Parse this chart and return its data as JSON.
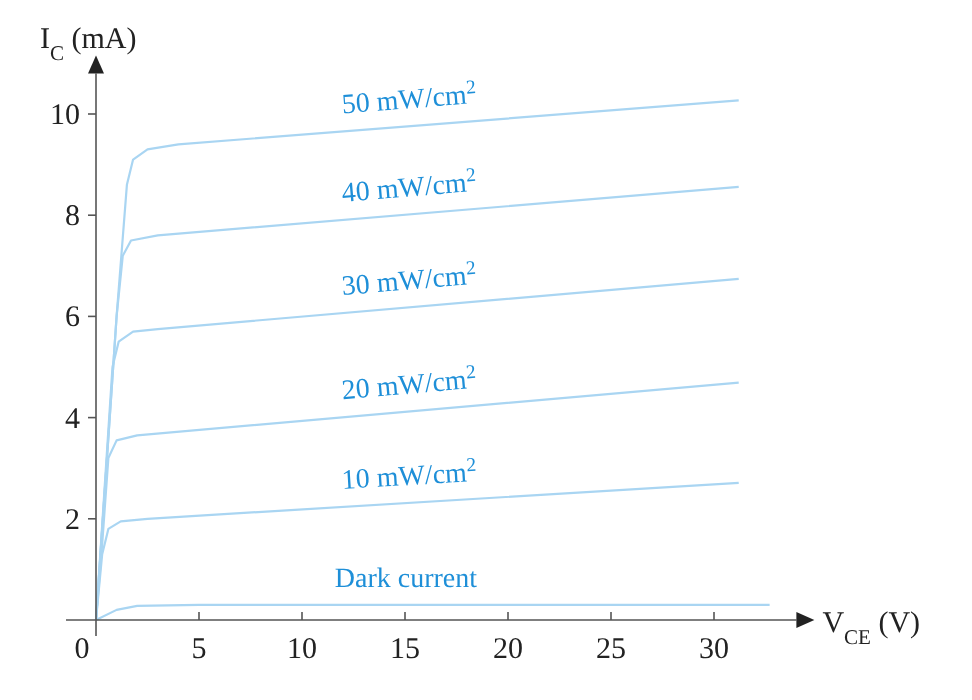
{
  "chart_data": {
    "type": "line",
    "xlabel": "V$_{CE}$ (V)",
    "ylabel": "I$_{C}$ (mA)",
    "xlim": [
      0,
      34
    ],
    "ylim": [
      0,
      10.8
    ],
    "xticks": [
      0,
      5,
      10,
      15,
      20,
      25,
      30
    ],
    "yticks": [
      {
        "value": 0,
        "label": null
      },
      2,
      4,
      6,
      8,
      10
    ],
    "grid": false,
    "marker": "none",
    "line_style": "solid",
    "series": [
      {
        "name": "50 mW/cm$^{2}$",
        "color": "#a9d5f2",
        "x": [
          0,
          0.5,
          1,
          1.5,
          1.8,
          2.5,
          4,
          31.2
        ],
        "values": [
          0,
          3,
          6,
          8.6,
          9.1,
          9.3,
          9.4,
          10.27
        ]
      },
      {
        "name": "40 mW/cm$^{2}$",
        "color": "#a9d5f2",
        "x": [
          0,
          0.5,
          1,
          1.3,
          1.7,
          3,
          31.2
        ],
        "values": [
          0,
          3,
          6,
          7.2,
          7.5,
          7.6,
          8.56
        ]
      },
      {
        "name": "30 mW/cm$^{2}$",
        "color": "#a9d5f2",
        "x": [
          0,
          0.4,
          0.8,
          1.1,
          1.8,
          3,
          31.2
        ],
        "values": [
          0,
          2.5,
          5,
          5.5,
          5.7,
          5.75,
          6.74
        ]
      },
      {
        "name": "20 mW/cm$^{2}$",
        "color": "#a9d5f2",
        "x": [
          0,
          0.3,
          0.6,
          1,
          2,
          31.2
        ],
        "values": [
          0,
          1.5,
          3.2,
          3.55,
          3.65,
          4.69
        ]
      },
      {
        "name": "10 mW/cm$^{2}$",
        "color": "#a9d5f2",
        "x": [
          0,
          0.3,
          0.6,
          1.2,
          2.5,
          31.2
        ],
        "values": [
          0,
          1.3,
          1.8,
          1.95,
          2,
          2.71
        ]
      },
      {
        "name": "Dark current",
        "color": "#a9d5f2",
        "x": [
          0,
          1,
          2,
          5,
          32.7
        ],
        "values": [
          0,
          0.2,
          0.28,
          0.3,
          0.3
        ]
      }
    ]
  }
}
